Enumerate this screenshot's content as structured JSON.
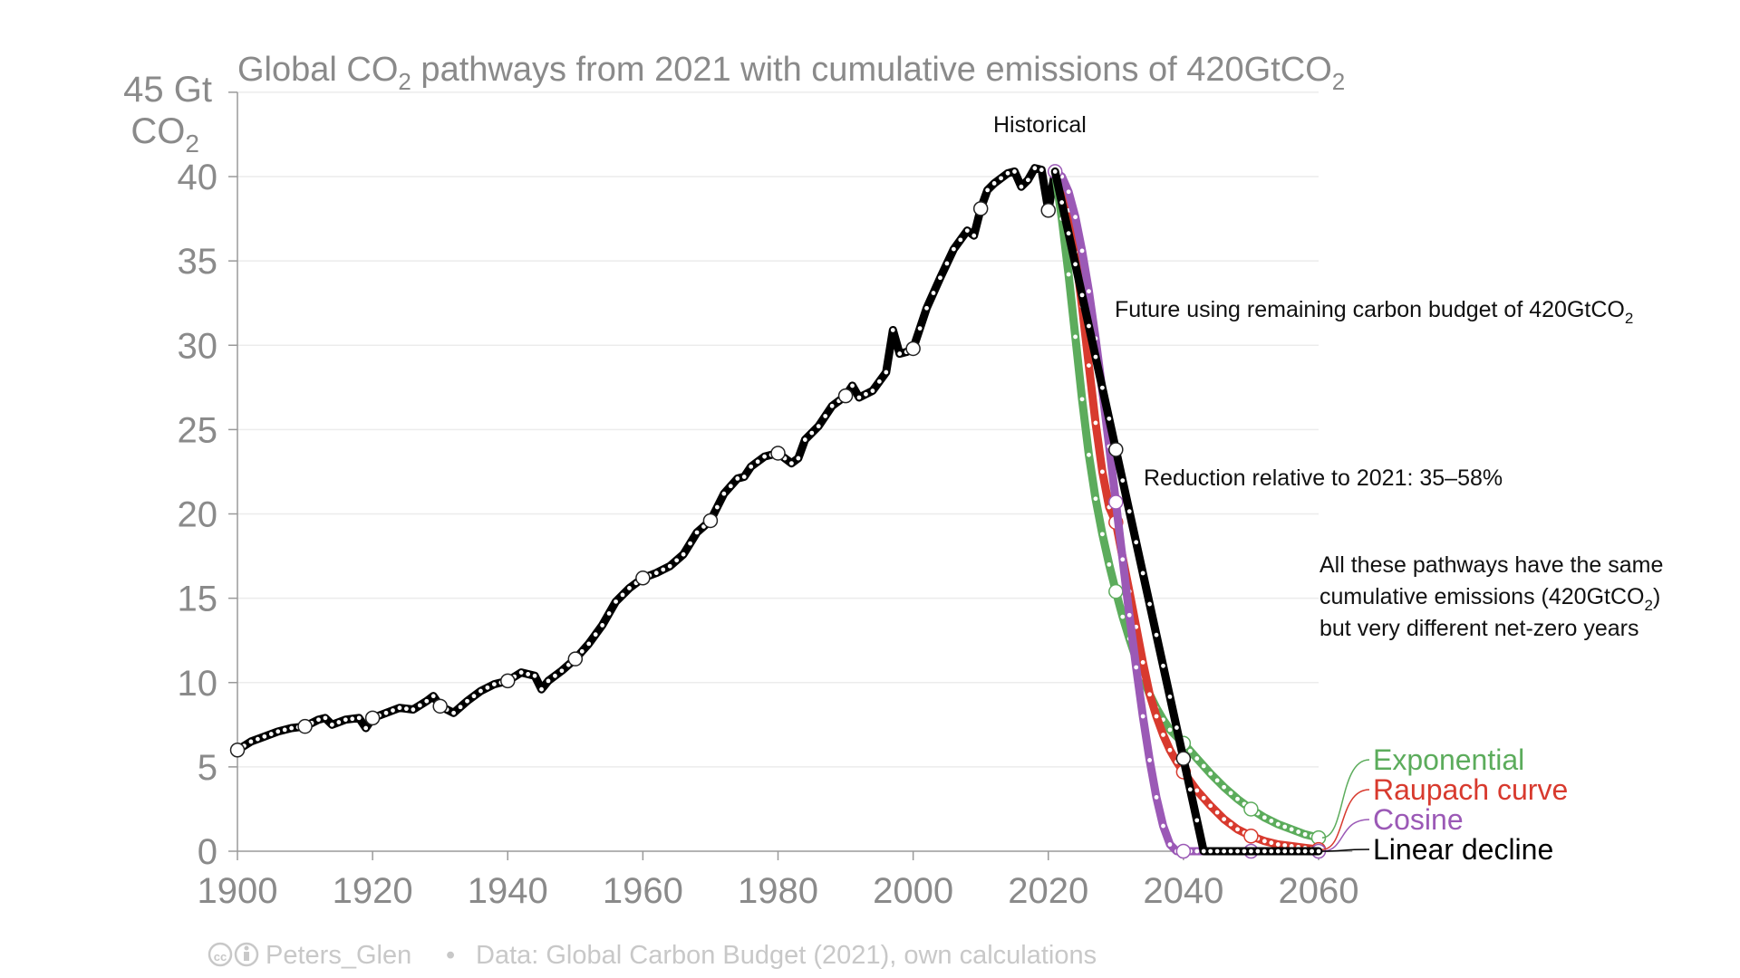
{
  "chart_data": {
    "type": "line",
    "title": "Global CO₂ pathways from 2021 with cumulative emissions of 420GtCO₂",
    "title_parts": {
      "pre": "Global CO",
      "sub1": "2",
      "mid": " pathways from 2021 with cumulative emissions of 420GtCO",
      "sub2": "2"
    },
    "ylabel": {
      "line1": "45 Gt",
      "line2_pre": "CO",
      "line2_sub": "2"
    },
    "xlim": [
      1900,
      2065
    ],
    "ylim": [
      0,
      45
    ],
    "x_ticks": [
      1900,
      1920,
      1940,
      1960,
      1980,
      2000,
      2020,
      2040,
      2060
    ],
    "y_ticks": [
      0,
      5,
      10,
      15,
      20,
      25,
      30,
      35,
      40
    ],
    "grid": true,
    "series": [
      {
        "name": "Historical",
        "color": "#000000",
        "x": [
          1900,
          1902,
          1904,
          1906,
          1908,
          1910,
          1912,
          1913,
          1914,
          1916,
          1918,
          1919,
          1920,
          1922,
          1924,
          1926,
          1928,
          1929,
          1930,
          1932,
          1934,
          1936,
          1938,
          1940,
          1942,
          1944,
          1945,
          1946,
          1948,
          1950,
          1952,
          1954,
          1956,
          1958,
          1960,
          1962,
          1964,
          1966,
          1968,
          1970,
          1972,
          1974,
          1975,
          1976,
          1978,
          1980,
          1982,
          1983,
          1984,
          1986,
          1988,
          1990,
          1991,
          1992,
          1994,
          1996,
          1997,
          1998,
          1999,
          2000,
          2001,
          2002,
          2004,
          2006,
          2008,
          2009,
          2010,
          2011,
          2012,
          2014,
          2015,
          2016,
          2017,
          2018,
          2019,
          2020,
          2021
        ],
        "y": [
          6.0,
          6.5,
          6.8,
          7.1,
          7.3,
          7.4,
          7.8,
          7.9,
          7.5,
          7.8,
          7.9,
          7.3,
          7.9,
          8.2,
          8.5,
          8.4,
          8.9,
          9.2,
          8.6,
          8.2,
          8.9,
          9.5,
          9.9,
          10.1,
          10.6,
          10.4,
          9.6,
          10.1,
          10.7,
          11.4,
          12.3,
          13.4,
          14.8,
          15.6,
          16.2,
          16.5,
          16.9,
          17.6,
          18.9,
          19.6,
          21.2,
          22.1,
          22.2,
          22.8,
          23.4,
          23.6,
          23.0,
          23.3,
          24.4,
          25.2,
          26.4,
          27.0,
          27.6,
          26.9,
          27.3,
          28.4,
          30.9,
          29.5,
          29.6,
          29.8,
          31.0,
          32.2,
          34.0,
          35.7,
          36.8,
          36.5,
          38.1,
          39.2,
          39.6,
          40.2,
          40.3,
          39.4,
          39.8,
          40.5,
          40.4,
          38.0,
          40.3
        ],
        "markers_x": [
          1900,
          1910,
          1920,
          1930,
          1940,
          1950,
          1960,
          1970,
          1980,
          1990,
          2000,
          2010,
          2020
        ]
      },
      {
        "name": "Exponential",
        "color": "#5cac5c",
        "x": [
          2021,
          2022,
          2023,
          2024,
          2025,
          2026,
          2027,
          2028,
          2029,
          2030,
          2031,
          2032,
          2033,
          2034,
          2035,
          2036,
          2037,
          2038,
          2039,
          2040,
          2042,
          2044,
          2046,
          2048,
          2050,
          2052,
          2054,
          2056,
          2058,
          2060
        ],
        "y": [
          40.3,
          37.5,
          34.2,
          30.5,
          26.8,
          23.5,
          20.9,
          18.8,
          17.0,
          15.4,
          13.9,
          12.6,
          11.4,
          10.3,
          9.3,
          8.5,
          7.8,
          7.2,
          6.8,
          6.4,
          5.5,
          4.6,
          3.8,
          3.1,
          2.5,
          2.0,
          1.6,
          1.3,
          1.0,
          0.8
        ],
        "markers_x": [
          2030,
          2040,
          2050,
          2060
        ]
      },
      {
        "name": "Raupach curve",
        "color": "#d83a2e",
        "x": [
          2021,
          2022,
          2023,
          2024,
          2025,
          2026,
          2027,
          2028,
          2029,
          2030,
          2031,
          2032,
          2033,
          2034,
          2035,
          2036,
          2037,
          2038,
          2039,
          2040,
          2042,
          2044,
          2046,
          2048,
          2050,
          2052,
          2054,
          2056,
          2058,
          2060
        ],
        "y": [
          40.3,
          39.5,
          38.0,
          35.5,
          32.3,
          28.8,
          25.4,
          22.5,
          20.4,
          19.5,
          17.4,
          15.4,
          13.3,
          11.2,
          9.3,
          8.0,
          6.9,
          6.0,
          5.3,
          4.7,
          3.6,
          2.7,
          1.9,
          1.3,
          0.9,
          0.6,
          0.4,
          0.3,
          0.2,
          0.1
        ],
        "markers_x": [
          2030,
          2040,
          2050,
          2060
        ]
      },
      {
        "name": "Cosine",
        "color": "#9b59b6",
        "x": [
          2021,
          2022,
          2023,
          2024,
          2025,
          2026,
          2027,
          2028,
          2029,
          2030,
          2031,
          2032,
          2033,
          2034,
          2035,
          2036,
          2037,
          2038,
          2039,
          2040,
          2045,
          2050,
          2055,
          2060
        ],
        "y": [
          40.3,
          40.0,
          39.1,
          37.6,
          35.6,
          33.2,
          30.4,
          27.3,
          24.0,
          20.7,
          17.3,
          14.0,
          10.9,
          8.0,
          5.4,
          3.2,
          1.5,
          0.4,
          0.0,
          0.0,
          0.0,
          0.0,
          0.0,
          0.0
        ],
        "markers_x": [
          2021,
          2030,
          2040,
          2050,
          2060
        ]
      },
      {
        "name": "Linear decline",
        "color": "#000000",
        "x": [
          2021,
          2043,
          2060
        ],
        "y": [
          40.3,
          0.0,
          0.0
        ],
        "markers_x": [
          2030,
          2040
        ]
      }
    ],
    "annotations": {
      "historical": "Historical",
      "future": {
        "pre": "Future using remaining carbon budget of 420GtCO",
        "sub": "2"
      },
      "reduction": "Reduction relative to 2021: 35–58%",
      "note_line1": "All these pathways have the same",
      "note_line2": {
        "pre": "cumulative emissions (420GtCO",
        "sub": "2",
        "post": ")"
      },
      "note_line3": "but very different net-zero years"
    },
    "legend": [
      {
        "label": "Exponential",
        "color": "#5cac5c"
      },
      {
        "label": "Raupach curve",
        "color": "#d83a2e"
      },
      {
        "label": "Cosine",
        "color": "#9b59b6"
      },
      {
        "label": "Linear decline",
        "color": "#000000"
      }
    ]
  },
  "footer": {
    "license_icon": "cc-by-icon",
    "author": "Peters_Glen",
    "separator": "•",
    "source": "Data: Global Carbon Budget (2021), own calculations"
  }
}
